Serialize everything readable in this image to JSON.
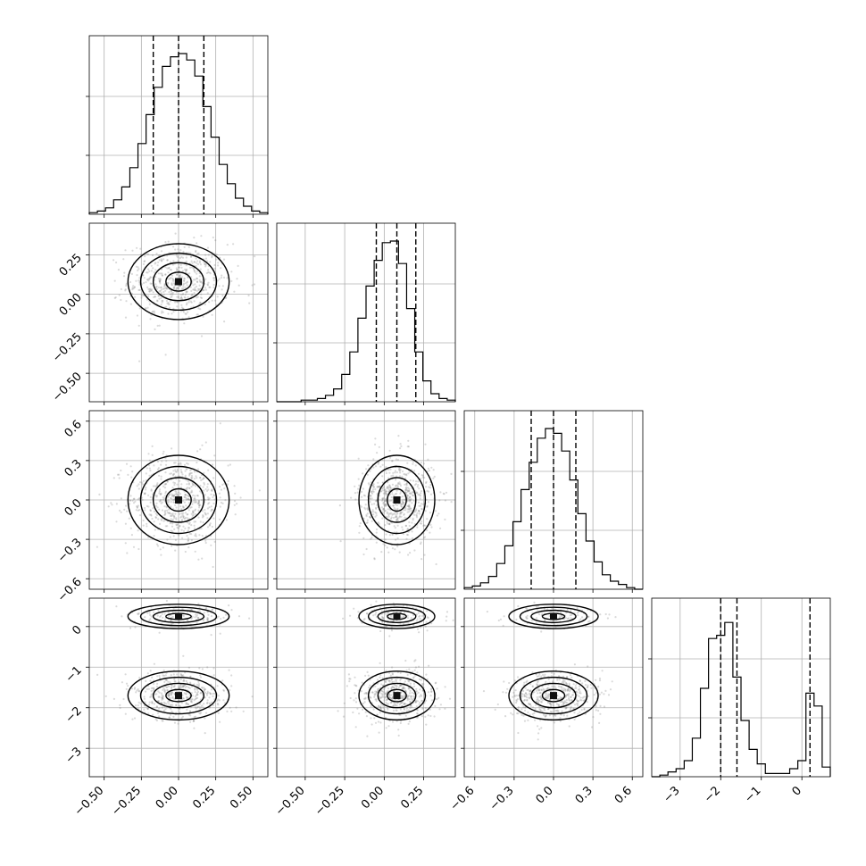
{
  "chart_data": {
    "type": "corner",
    "grid": true,
    "parameters": [
      {
        "range": [
          -0.6,
          0.6
        ],
        "ticks": [
          -0.5,
          -0.25,
          0.0,
          0.25,
          0.5
        ],
        "tick_labels": [
          "−0.50",
          "−0.25",
          "0.00",
          "0.25",
          "0.50"
        ],
        "quantiles": [
          -0.17,
          0.0,
          0.17
        ],
        "mean": 0.0,
        "sd": 0.17
      },
      {
        "range": [
          -0.68,
          0.45
        ],
        "ticks": [
          -0.5,
          -0.25,
          0.0,
          0.25
        ],
        "tick_labels": [
          "−0.50",
          "−0.25",
          "0.00",
          "0.25"
        ],
        "quantiles": [
          -0.05,
          0.08,
          0.2
        ],
        "mean": 0.08,
        "sd": 0.12
      },
      {
        "range": [
          -0.68,
          0.68
        ],
        "ticks": [
          -0.6,
          -0.3,
          0.0,
          0.3,
          0.6
        ],
        "tick_labels": [
          "−0.6",
          "−0.3",
          "0.0",
          "0.3",
          "0.6"
        ],
        "quantiles": [
          -0.17,
          0.0,
          0.17
        ],
        "mean": 0.0,
        "sd": 0.17
      },
      {
        "range": [
          -3.7,
          0.7
        ],
        "ticks": [
          -3,
          -2,
          -1,
          0
        ],
        "tick_labels": [
          "−3",
          "−2",
          "−1",
          "0"
        ],
        "quantiles": [
          -2.0,
          -1.6,
          0.2
        ],
        "modes": [
          {
            "mean": -1.7,
            "sd": 0.3,
            "weight": 0.78
          },
          {
            "mean": 0.25,
            "sd": 0.15,
            "weight": 0.22
          }
        ]
      }
    ],
    "histograms": [
      [
        0.01,
        0.02,
        0.04,
        0.09,
        0.17,
        0.29,
        0.44,
        0.62,
        0.79,
        0.92,
        0.98,
        1.0,
        0.96,
        0.86,
        0.67,
        0.48,
        0.31,
        0.19,
        0.1,
        0.05,
        0.02,
        0.01
      ],
      [
        0.0,
        0.0,
        0.0,
        0.01,
        0.01,
        0.02,
        0.04,
        0.08,
        0.17,
        0.31,
        0.52,
        0.72,
        0.88,
        0.99,
        1.0,
        0.86,
        0.58,
        0.31,
        0.13,
        0.05,
        0.02,
        0.01
      ],
      [
        0.01,
        0.02,
        0.04,
        0.08,
        0.16,
        0.27,
        0.42,
        0.62,
        0.79,
        0.94,
        1.0,
        0.97,
        0.86,
        0.68,
        0.47,
        0.3,
        0.17,
        0.09,
        0.05,
        0.03,
        0.01,
        0.0
      ],
      [
        0.0,
        0.01,
        0.03,
        0.05,
        0.1,
        0.24,
        0.55,
        0.86,
        0.88,
        0.96,
        0.62,
        0.35,
        0.17,
        0.08,
        0.02,
        0.02,
        0.02,
        0.05,
        0.1,
        0.52,
        0.44,
        0.06
      ]
    ]
  }
}
